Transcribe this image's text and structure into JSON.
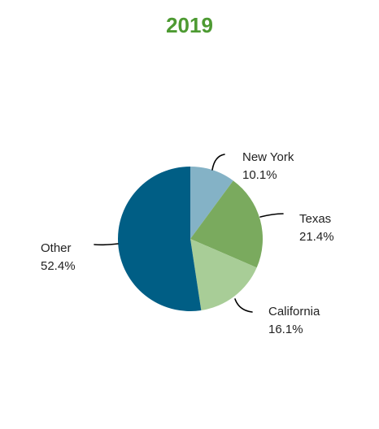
{
  "chart_data": {
    "type": "pie",
    "title": "2019",
    "slices": [
      {
        "label": "New York",
        "value": 10.1,
        "value_text": "10.1%",
        "color": "#84b2c6"
      },
      {
        "label": "Texas",
        "value": 21.4,
        "value_text": "21.4%",
        "color": "#7aaa5e"
      },
      {
        "label": "California",
        "value": 16.1,
        "value_text": "16.1%",
        "color": "#a8cd97"
      },
      {
        "label": "Other",
        "value": 52.4,
        "value_text": "52.4%",
        "color": "#005e85"
      }
    ],
    "start_angle": "12 o'clock",
    "direction": "clockwise",
    "title_color": "#4d9a32"
  }
}
